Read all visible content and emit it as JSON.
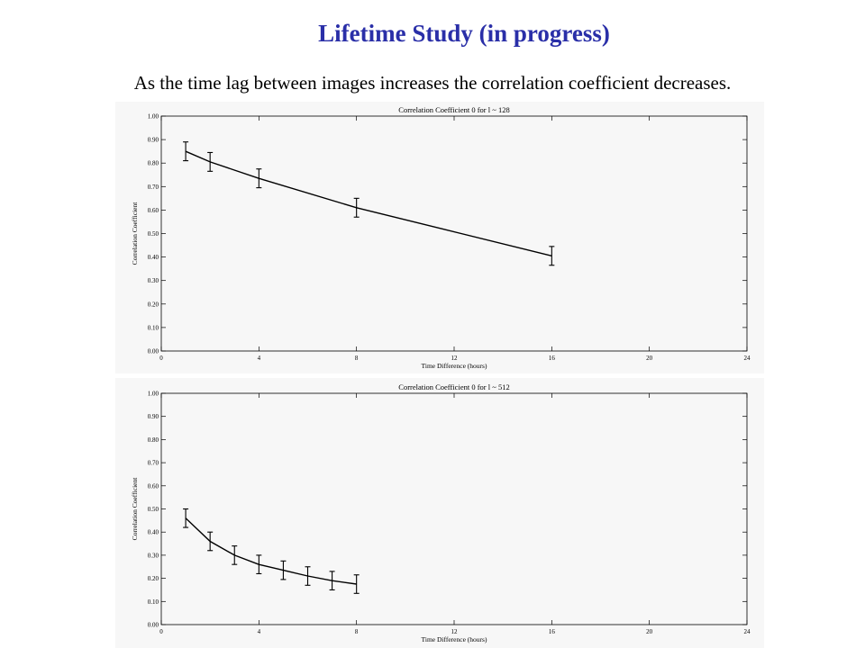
{
  "slide": {
    "title": "Lifetime Study (in progress)",
    "subtitle": "As the time lag between images increases the correlation coefficient decreases."
  },
  "colors": {
    "title": "#2a2fa8",
    "line": "#000000",
    "plot_bg": "#f7f7f7"
  },
  "chart_data": [
    {
      "type": "line",
      "title": "Correlation Coefficient 0 for l ~ 128",
      "xlabel": "Time Difference (hours)",
      "ylabel": "Correlation Coefficient",
      "xlim": [
        0,
        24
      ],
      "ylim": [
        0,
        1
      ],
      "xticks": [
        "0",
        "4",
        "8",
        "12",
        "16",
        "20",
        "24"
      ],
      "yticks": [
        "0.00",
        "0.10",
        "0.20",
        "0.30",
        "0.40",
        "0.50",
        "0.60",
        "0.70",
        "0.80",
        "0.90",
        "1.00"
      ],
      "grid": false,
      "series": [
        {
          "x": [
            1,
            2,
            4,
            8,
            16
          ],
          "y": [
            0.85,
            0.805,
            0.735,
            0.61,
            0.405
          ],
          "err": [
            0.04,
            0.04,
            0.04,
            0.04,
            0.04
          ]
        }
      ]
    },
    {
      "type": "line",
      "title": "Correlation Coefficient 0 for l ~ 512",
      "xlabel": "Time Difference (hours)",
      "ylabel": "Correlation Coefficient",
      "xlim": [
        0,
        24
      ],
      "ylim": [
        0,
        1
      ],
      "xticks": [
        "0",
        "4",
        "8",
        "12",
        "16",
        "20",
        "24"
      ],
      "yticks": [
        "0.00",
        "0.10",
        "0.20",
        "0.30",
        "0.40",
        "0.50",
        "0.60",
        "0.70",
        "0.80",
        "0.90",
        "1.00"
      ],
      "grid": false,
      "series": [
        {
          "x": [
            1,
            2,
            3,
            4,
            5,
            6,
            7,
            8
          ],
          "y": [
            0.46,
            0.36,
            0.3,
            0.26,
            0.235,
            0.21,
            0.19,
            0.175
          ],
          "err": [
            0.04,
            0.04,
            0.04,
            0.04,
            0.04,
            0.04,
            0.04,
            0.04
          ]
        }
      ]
    }
  ]
}
